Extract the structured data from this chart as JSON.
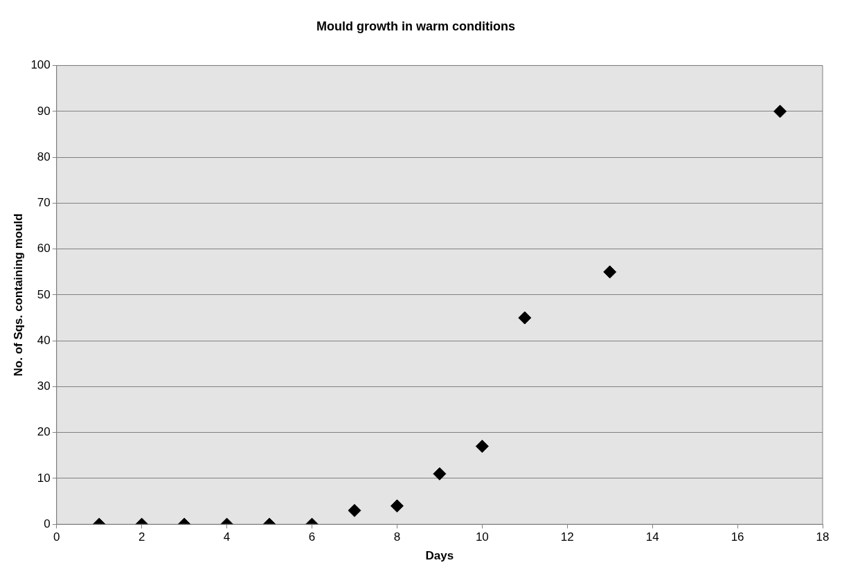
{
  "chart_data": {
    "type": "scatter",
    "title": "Mould growth in warm conditions",
    "xlabel": "Days",
    "ylabel": "No. of Sqs. containing mould",
    "x": [
      1,
      2,
      3,
      4,
      5,
      6,
      7,
      8,
      9,
      10,
      11,
      13,
      17
    ],
    "values": [
      0,
      0,
      0,
      0,
      0,
      0,
      3,
      4,
      11,
      17,
      45,
      55,
      90
    ],
    "color": "#000000",
    "marker": "diamond",
    "xlim": [
      0,
      18
    ],
    "xticks": [
      0,
      2,
      4,
      6,
      8,
      10,
      12,
      14,
      16,
      18
    ],
    "ylim": [
      0,
      100
    ],
    "yticks": [
      0,
      10,
      20,
      30,
      40,
      50,
      60,
      70,
      80,
      90,
      100
    ],
    "grid": "y",
    "legend": false
  }
}
